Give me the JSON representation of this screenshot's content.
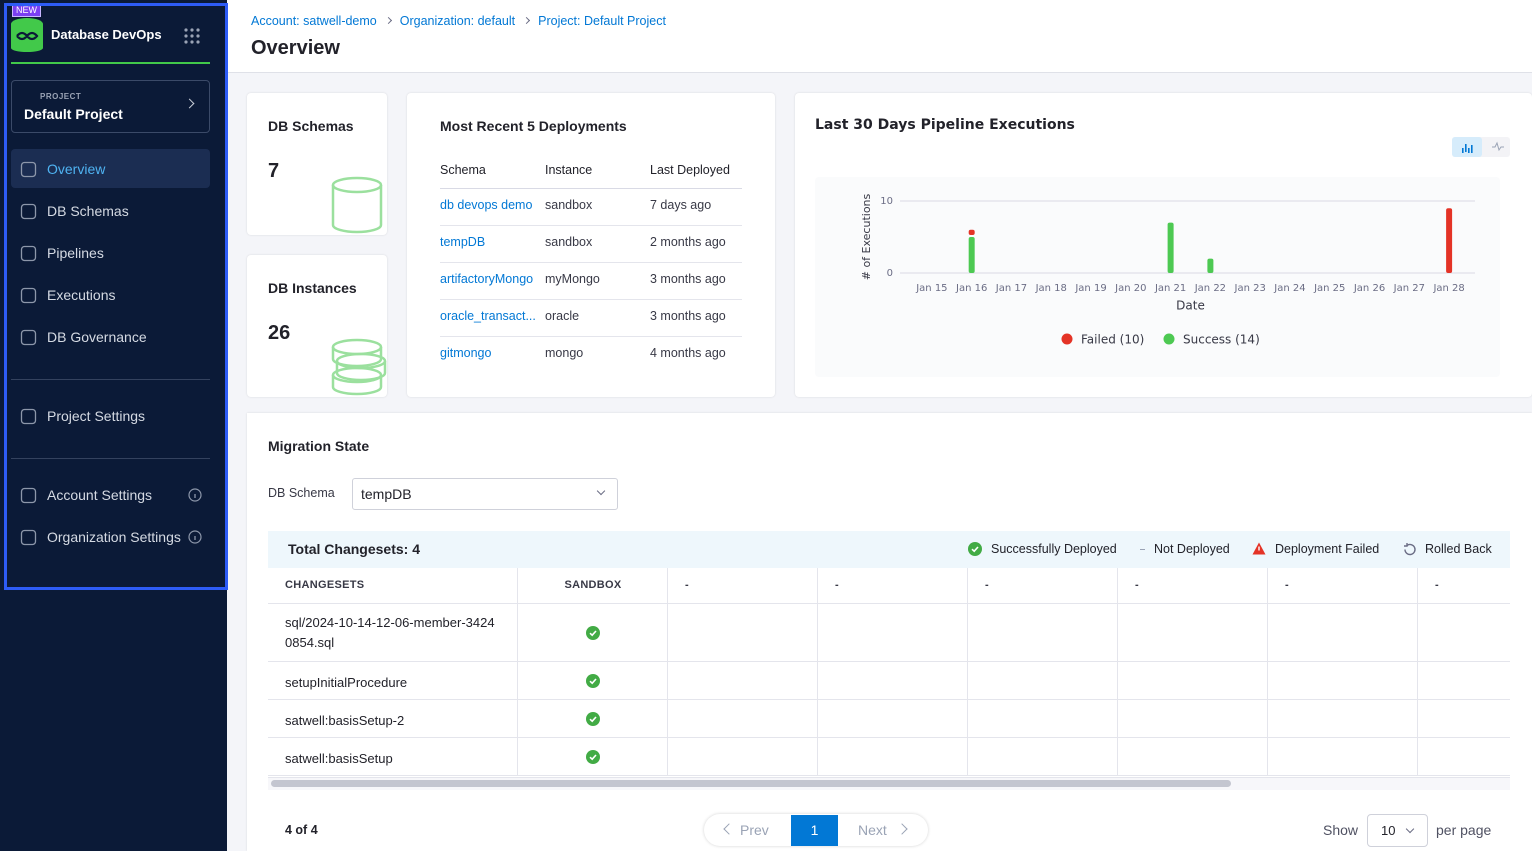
{
  "sidebar": {
    "badge": "NEW",
    "product": "Database DevOps",
    "project_label": "PROJECT",
    "project_name": "Default Project",
    "nav": [
      "Overview",
      "DB Schemas",
      "Pipelines",
      "Executions",
      "DB Governance"
    ],
    "project_settings": "Project Settings",
    "account_settings": "Account Settings",
    "organization_settings": "Organization Settings"
  },
  "breadcrumb": [
    "Account: satwell-demo",
    "Organization: default",
    "Project: Default Project"
  ],
  "title": "Overview",
  "cards": [
    {
      "label": "DB Schemas",
      "value": 7
    },
    {
      "label": "DB Instances",
      "value": 26
    }
  ],
  "deployments": {
    "title": "Most Recent 5 Deployments",
    "columns": [
      "Schema",
      "Instance",
      "Last Deployed"
    ],
    "rows": [
      [
        "db devops demo",
        "sandbox",
        "7 days ago"
      ],
      [
        "tempDB",
        "sandbox",
        "2 months ago"
      ],
      [
        "artifactoryMongo",
        "myMongo",
        "3 months ago"
      ],
      [
        "oracle_transact...",
        "oracle",
        "3 months ago"
      ],
      [
        "gitmongo",
        "mongo",
        "4 months ago"
      ]
    ]
  },
  "chart_data": {
    "type": "bar",
    "stacked": true,
    "title": "Last 30 Days Pipeline Executions",
    "x_label": "Date",
    "y_label": "# of Executions",
    "categories": [
      "Jan 15",
      "Jan 16",
      "Jan 17",
      "Jan 18",
      "Jan 19",
      "Jan 20",
      "Jan 21",
      "Jan 22",
      "Jan 23",
      "Jan 24",
      "Jan 25",
      "Jan 26",
      "Jan 27",
      "Jan 28"
    ],
    "series": [
      {
        "name": "Failed (10)",
        "color": "#e43326",
        "values": [
          0,
          1,
          0,
          0,
          0,
          0,
          0,
          0,
          0,
          0,
          0,
          0,
          0,
          9
        ]
      },
      {
        "name": "Success (14)",
        "color": "#4dc952",
        "values": [
          0,
          5,
          0,
          0,
          0,
          0,
          7,
          2,
          0,
          0,
          0,
          0,
          0,
          0
        ]
      }
    ],
    "ylim": [
      0,
      10
    ],
    "yticks": [
      0,
      10
    ],
    "grid": true
  },
  "migration": {
    "title": "Migration State",
    "filter_label": "DB Schema",
    "selected": "tempDB",
    "total": "Total Changesets: 4",
    "legend": [
      "Successfully Deployed",
      "Not Deployed",
      "Deployment Failed",
      "Rolled Back"
    ],
    "columns": [
      "CHANGESETS",
      "SANDBOX",
      "-",
      "-",
      "-",
      "-",
      "-",
      "-"
    ],
    "rows": [
      "sql/2024-10-14-12-06-member-34240854.sql",
      "setupInitialProcedure",
      "satwell:basisSetup-2",
      "satwell:basisSetup"
    ]
  },
  "pagination": {
    "range": "4 of 4",
    "prev": "Prev",
    "page": 1,
    "next": "Next",
    "show": "Show",
    "page_size": 10,
    "per_page": "per page"
  }
}
